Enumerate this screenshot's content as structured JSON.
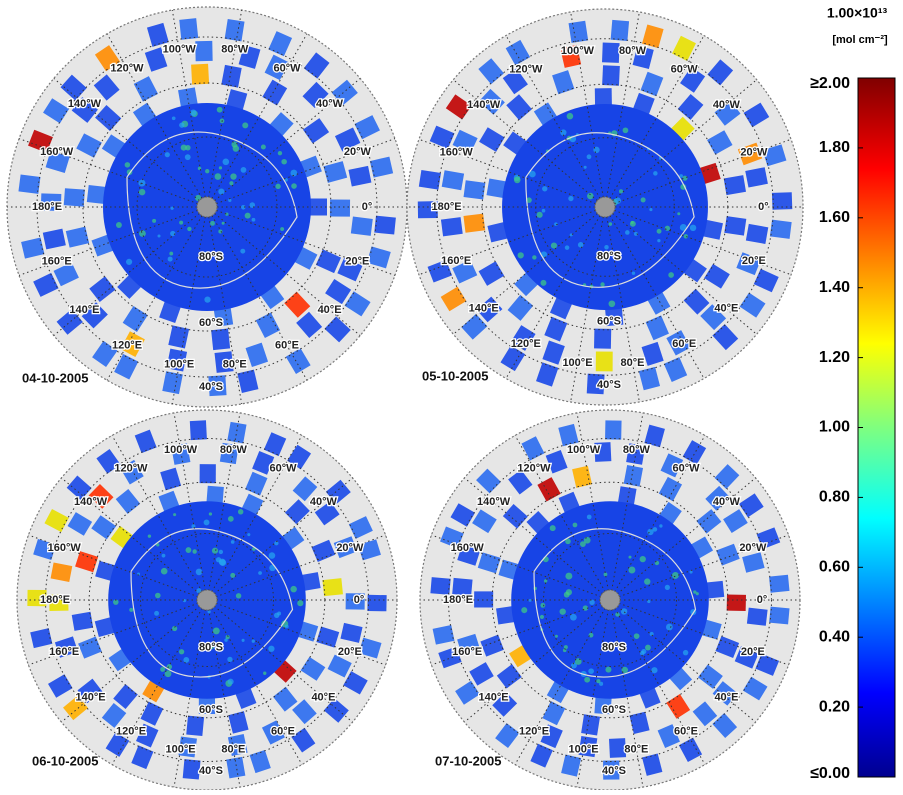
{
  "panels": [
    {
      "date": "04-10-2005"
    },
    {
      "date": "05-10-2005"
    },
    {
      "date": "06-10-2005"
    },
    {
      "date": "07-10-2005"
    }
  ],
  "meridian_labels": [
    "0°",
    "20°W",
    "40°W",
    "60°W",
    "80°W",
    "100°W",
    "120°W",
    "140°W",
    "160°W",
    "180°E",
    "160°E",
    "140°E",
    "120°E",
    "100°E",
    "80°E",
    "60°E",
    "40°E",
    "20°E"
  ],
  "parallel_labels": [
    "40°S",
    "60°S",
    "80°S"
  ],
  "colorbar": {
    "title": "1.00×10¹³",
    "unit": "[mol cm⁻²]",
    "range": [
      0,
      2
    ],
    "ticks": [
      {
        "value": 2,
        "label": "≥2.00"
      },
      {
        "value": 1.8,
        "label": "1.80"
      },
      {
        "value": 1.6,
        "label": "1.60"
      },
      {
        "value": 1.4,
        "label": "1.40"
      },
      {
        "value": 1.2,
        "label": "1.20"
      },
      {
        "value": 1,
        "label": "1.00"
      },
      {
        "value": 0.8,
        "label": "0.80"
      },
      {
        "value": 0.6,
        "label": "0.60"
      },
      {
        "value": 0.4,
        "label": "0.40"
      },
      {
        "value": 0.2,
        "label": "0.20"
      },
      {
        "value": 0,
        "label": "≤0.00"
      }
    ]
  }
}
